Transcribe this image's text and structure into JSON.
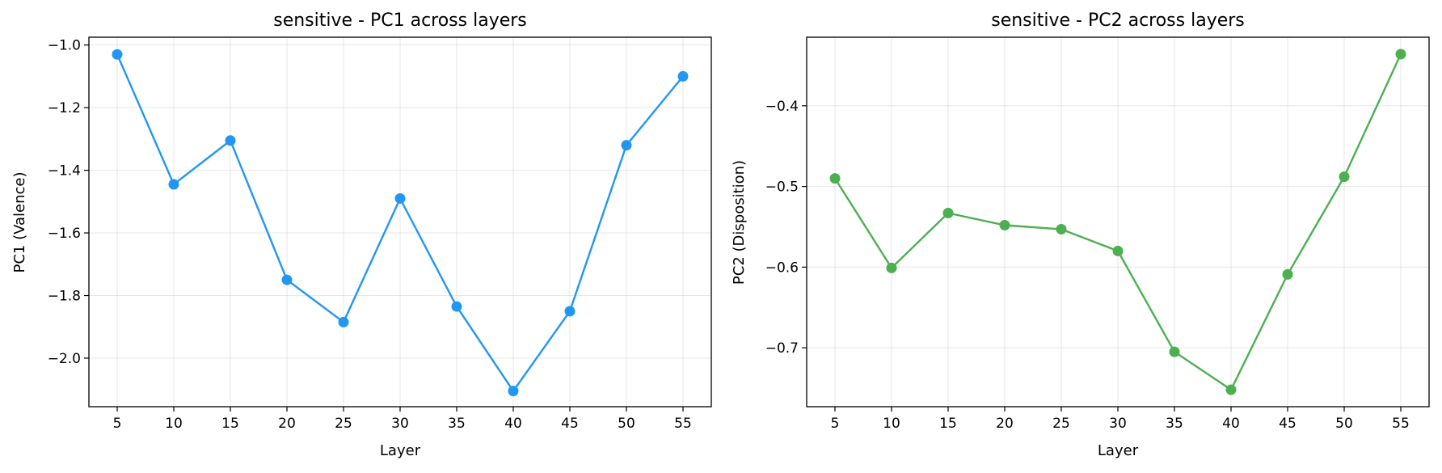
{
  "chart_data": [
    {
      "type": "line",
      "title": "sensitive - PC1 across layers",
      "xlabel": "Layer",
      "ylabel": "PC1 (Valence)",
      "color": "#2196f3",
      "grid": true,
      "x": [
        5,
        10,
        15,
        20,
        25,
        30,
        35,
        40,
        45,
        50,
        55
      ],
      "values": [
        -1.03,
        -1.445,
        -1.305,
        -1.75,
        -1.885,
        -1.49,
        -1.835,
        -2.105,
        -1.85,
        -1.32,
        -1.1
      ],
      "xlim": [
        2.5,
        57.5
      ],
      "ylim": [
        -2.155,
        -0.975
      ],
      "xticks": [
        "5",
        "10",
        "15",
        "20",
        "25",
        "30",
        "35",
        "40",
        "45",
        "50",
        "55"
      ],
      "yticks": [
        "−1.0",
        "−1.2",
        "−1.4",
        "−1.6",
        "−1.8",
        "−2.0"
      ],
      "ytick_values": [
        -1.0,
        -1.2,
        -1.4,
        -1.6,
        -1.8,
        -2.0
      ]
    },
    {
      "type": "line",
      "title": "sensitive - PC2 across layers",
      "xlabel": "Layer",
      "ylabel": "PC2 (Disposition)",
      "color": "#4caf50",
      "grid": true,
      "x": [
        5,
        10,
        15,
        20,
        25,
        30,
        35,
        40,
        45,
        50,
        55
      ],
      "values": [
        -0.49,
        -0.601,
        -0.533,
        -0.548,
        -0.553,
        -0.58,
        -0.705,
        -0.752,
        -0.609,
        -0.488,
        -0.336
      ],
      "xlim": [
        2.5,
        57.5
      ],
      "ylim": [
        -0.773,
        -0.315
      ],
      "xticks": [
        "5",
        "10",
        "15",
        "20",
        "25",
        "30",
        "35",
        "40",
        "45",
        "50",
        "55"
      ],
      "yticks": [
        "−0.4",
        "−0.5",
        "−0.6",
        "−0.7"
      ],
      "ytick_values": [
        -0.4,
        -0.5,
        -0.6,
        -0.7
      ]
    }
  ]
}
